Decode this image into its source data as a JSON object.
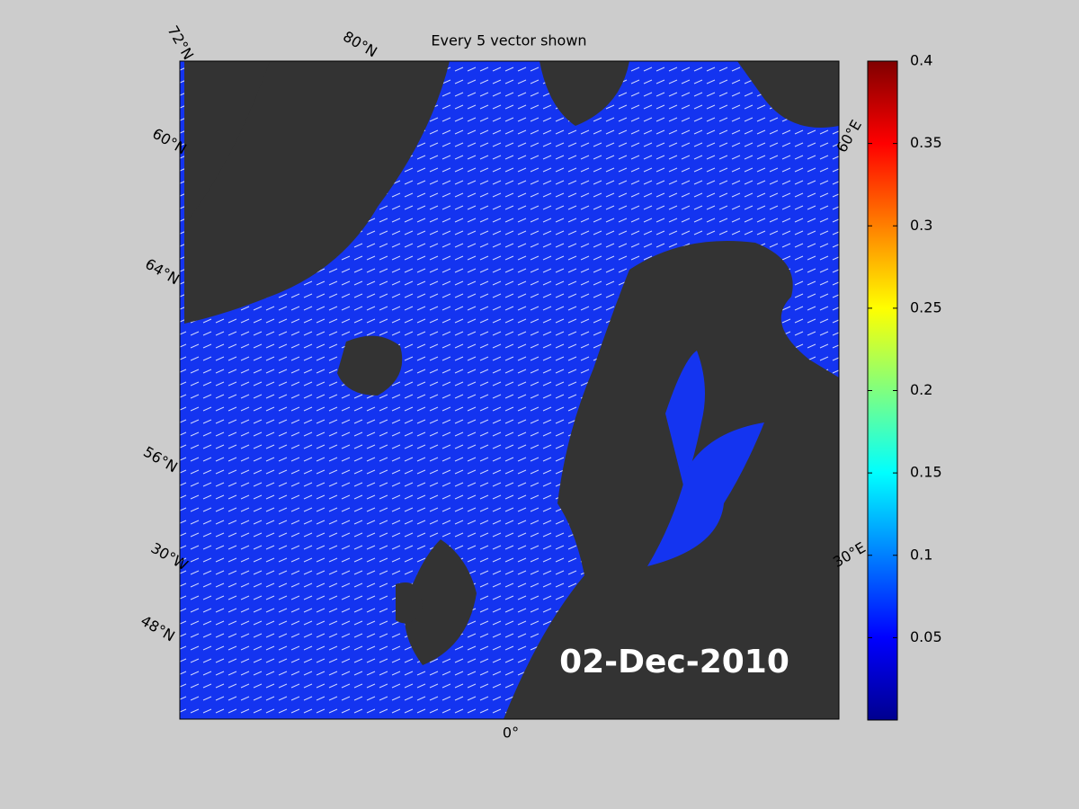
{
  "title": "Every 5 vector shown",
  "date_label": "02-Dec-2010",
  "graticule_labels": [
    "72°N",
    "80°N",
    "60°N",
    "64°N",
    "56°N",
    "30°W",
    "48°N",
    "0°",
    "30°E",
    "60°E"
  ],
  "colorbar": {
    "ylim": [
      0,
      0.4
    ],
    "yticks": [
      0.05,
      0.1,
      0.15,
      0.2,
      0.25,
      0.3,
      0.35,
      0.4
    ]
  }
}
